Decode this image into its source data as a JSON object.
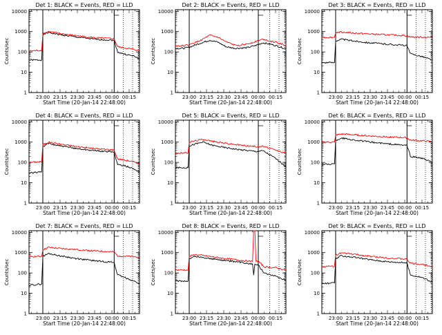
{
  "figure": {
    "background": "#ffffff",
    "series_colors": {
      "events": "#000000",
      "lld": "#ff0000"
    }
  },
  "chart_data": [
    {
      "type": "line",
      "title": "Det 1: BLACK = Events, RED = LLD",
      "xlabel": "Start Time (20-Jan-14 22:48:00)",
      "ylabel": "Counts/sec",
      "y_scale": "log",
      "ylim": [
        1,
        12000
      ],
      "xlim": [
        "22:48",
        "00:24"
      ],
      "x_tick_labels": [
        "23:00",
        "23:15",
        "23:30",
        "23:45",
        "00:00",
        "00:15"
      ],
      "y_tick_labels": [
        "1",
        "10",
        "100",
        "1000",
        "10000"
      ],
      "series": [
        {
          "name": "BLACK = Events",
          "color": "#000000",
          "x": [
            "22:48",
            "22:59",
            "23:00",
            "23:05",
            "23:15",
            "23:30",
            "23:45",
            "00:00",
            "00:02",
            "00:05",
            "00:10",
            "00:20",
            "00:24"
          ],
          "y": [
            40,
            40,
            700,
            900,
            700,
            530,
            420,
            380,
            360,
            100,
            80,
            60,
            45
          ]
        },
        {
          "name": "RED = LLD",
          "color": "#ff0000",
          "x": [
            "22:48",
            "22:59",
            "23:00",
            "23:05",
            "23:15",
            "23:30",
            "23:45",
            "00:00",
            "00:02",
            "00:05",
            "00:10",
            "00:20",
            "00:24"
          ],
          "y": [
            110,
            120,
            800,
            1000,
            800,
            620,
            500,
            450,
            430,
            180,
            160,
            130,
            110
          ]
        }
      ],
      "markers": [
        "23:00",
        "00:02"
      ],
      "dotted_lines": [
        "00:10",
        "00:18",
        "00:23"
      ]
    },
    {
      "type": "line",
      "title": "Det 2: BLACK = Events, RED = LLD",
      "xlabel": "Start Time (20-Jan-14 22:48:00)",
      "ylabel": "Counts/sec",
      "y_scale": "log",
      "ylim": [
        1,
        12000
      ],
      "xlim": [
        "22:48",
        "00:24"
      ],
      "x_tick_labels": [
        "23:00",
        "23:15",
        "23:30",
        "23:45",
        "00:00",
        "00:15"
      ],
      "y_tick_labels": [
        "1",
        "10",
        "100",
        "1000",
        "10000"
      ],
      "series": [
        {
          "name": "BLACK = Events",
          "color": "#000000",
          "x": [
            "22:48",
            "22:55",
            "23:00",
            "23:08",
            "23:18",
            "23:25",
            "23:32",
            "23:40",
            "23:50",
            "23:58",
            "00:04",
            "00:12",
            "00:20",
            "00:24"
          ],
          "y": [
            150,
            150,
            170,
            250,
            380,
            300,
            180,
            150,
            160,
            210,
            280,
            230,
            170,
            140
          ]
        },
        {
          "name": "RED = LLD",
          "color": "#ff0000",
          "x": [
            "22:48",
            "22:55",
            "23:00",
            "23:08",
            "23:18",
            "23:25",
            "23:32",
            "23:40",
            "23:50",
            "23:58",
            "00:04",
            "00:12",
            "00:20",
            "00:24"
          ],
          "y": [
            200,
            200,
            220,
            330,
            650,
            520,
            310,
            210,
            240,
            330,
            420,
            330,
            250,
            200
          ]
        }
      ],
      "markers": [
        "23:00",
        "00:00"
      ],
      "dotted_lines": [
        "00:10",
        "00:18",
        "00:23"
      ]
    },
    {
      "type": "line",
      "title": "Det 3: BLACK = Events, RED = LLD",
      "xlabel": "Start Time (20-Jan-14 22:48:00)",
      "ylabel": "Counts/sec",
      "y_scale": "log",
      "ylim": [
        1,
        12000
      ],
      "xlim": [
        "22:48",
        "00:24"
      ],
      "x_tick_labels": [
        "23:00",
        "23:15",
        "23:30",
        "23:45",
        "00:00",
        "00:15"
      ],
      "y_tick_labels": [
        "1",
        "10",
        "100",
        "1000",
        "10000"
      ],
      "series": [
        {
          "name": "BLACK = Events",
          "color": "#000000",
          "x": [
            "22:48",
            "22:59",
            "23:00",
            "23:05",
            "23:15",
            "23:30",
            "23:45",
            "00:00",
            "00:02",
            "00:05",
            "00:15",
            "00:24"
          ],
          "y": [
            30,
            30,
            350,
            420,
            350,
            280,
            240,
            210,
            200,
            80,
            60,
            40
          ]
        },
        {
          "name": "RED = LLD",
          "color": "#ff0000",
          "x": [
            "22:48",
            "22:59",
            "23:00",
            "23:05",
            "23:15",
            "23:30",
            "23:45",
            "00:00",
            "00:02",
            "00:05",
            "00:15",
            "00:24"
          ],
          "y": [
            520,
            520,
            900,
            950,
            850,
            760,
            690,
            640,
            620,
            540,
            530,
            520
          ]
        }
      ],
      "markers": [
        "23:00",
        "00:02"
      ],
      "dotted_lines": [
        "00:10",
        "00:18",
        "00:23"
      ]
    },
    {
      "type": "line",
      "title": "Det 4: BLACK = Events, RED = LLD",
      "xlabel": "Start Time (20-Jan-14 22:48:00)",
      "ylabel": "Counts/sec",
      "y_scale": "log",
      "ylim": [
        1,
        12000
      ],
      "xlim": [
        "22:48",
        "00:24"
      ],
      "x_tick_labels": [
        "23:00",
        "23:15",
        "23:30",
        "23:45",
        "00:00",
        "00:15"
      ],
      "y_tick_labels": [
        "1",
        "10",
        "100",
        "1000",
        "10000"
      ],
      "series": [
        {
          "name": "BLACK = Events",
          "color": "#000000",
          "x": [
            "22:48",
            "22:59",
            "23:00",
            "23:05",
            "23:15",
            "23:30",
            "23:45",
            "00:00",
            "00:02",
            "00:05",
            "00:15",
            "00:24"
          ],
          "y": [
            30,
            35,
            600,
            850,
            650,
            480,
            380,
            330,
            310,
            80,
            60,
            35
          ]
        },
        {
          "name": "RED = LLD",
          "color": "#ff0000",
          "x": [
            "22:48",
            "22:59",
            "23:00",
            "23:05",
            "23:15",
            "23:30",
            "23:45",
            "00:00",
            "00:02",
            "00:05",
            "00:15",
            "00:24"
          ],
          "y": [
            100,
            110,
            750,
            1000,
            800,
            600,
            480,
            420,
            400,
            150,
            120,
            90
          ]
        }
      ],
      "markers": [
        "23:00",
        "00:02"
      ],
      "dotted_lines": [
        "00:10",
        "00:18",
        "00:23"
      ]
    },
    {
      "type": "line",
      "title": "Det 5: BLACK = Events, RED = LLD",
      "xlabel": "Start Time (20-Jan-14 22:48:00)",
      "ylabel": "Counts/sec",
      "y_scale": "log",
      "ylim": [
        1,
        12000
      ],
      "xlim": [
        "22:48",
        "00:24"
      ],
      "x_tick_labels": [
        "23:00",
        "23:15",
        "23:30",
        "23:45",
        "00:00",
        "00:15"
      ],
      "y_tick_labels": [
        "1",
        "10",
        "100",
        "1000",
        "10000"
      ],
      "series": [
        {
          "name": "BLACK = Events",
          "color": "#000000",
          "x": [
            "22:48",
            "22:59",
            "23:00",
            "23:05",
            "23:12",
            "23:20",
            "23:30",
            "23:45",
            "23:58",
            "00:04",
            "00:15",
            "00:24"
          ],
          "y": [
            55,
            55,
            650,
            800,
            1000,
            700,
            550,
            420,
            350,
            380,
            160,
            60
          ]
        },
        {
          "name": "RED = LLD",
          "color": "#ff0000",
          "x": [
            "22:48",
            "22:59",
            "23:00",
            "23:05",
            "23:12",
            "23:20",
            "23:30",
            "23:45",
            "23:58",
            "00:04",
            "00:15",
            "00:24"
          ],
          "y": [
            280,
            300,
            1000,
            1150,
            1400,
            1100,
            900,
            700,
            600,
            620,
            400,
            280
          ]
        }
      ],
      "markers": [
        "23:00",
        "00:00"
      ],
      "dotted_lines": [
        "00:10",
        "00:18",
        "00:23"
      ]
    },
    {
      "type": "line",
      "title": "Det 6: BLACK = Events, RED = LLD",
      "xlabel": "Start Time (20-Jan-14 22:48:00)",
      "ylabel": "Counts/sec",
      "y_scale": "log",
      "ylim": [
        1,
        12000
      ],
      "xlim": [
        "22:48",
        "00:24"
      ],
      "x_tick_labels": [
        "23:00",
        "23:15",
        "23:30",
        "23:45",
        "00:00",
        "00:15"
      ],
      "y_tick_labels": [
        "1",
        "10",
        "100",
        "1000",
        "10000"
      ],
      "series": [
        {
          "name": "BLACK = Events",
          "color": "#000000",
          "x": [
            "22:48",
            "22:59",
            "23:00",
            "23:05",
            "23:15",
            "23:30",
            "23:45",
            "00:00",
            "00:02",
            "00:05",
            "00:15",
            "00:24"
          ],
          "y": [
            80,
            85,
            1200,
            1600,
            1300,
            1000,
            820,
            700,
            680,
            200,
            160,
            100
          ]
        },
        {
          "name": "RED = LLD",
          "color": "#ff0000",
          "x": [
            "22:48",
            "22:59",
            "23:00",
            "23:05",
            "23:15",
            "23:30",
            "23:45",
            "00:00",
            "00:02",
            "00:05",
            "00:15",
            "00:24"
          ],
          "y": [
            1000,
            1000,
            2200,
            2500,
            2300,
            2000,
            1800,
            1650,
            1600,
            1250,
            1150,
            1050
          ]
        }
      ],
      "markers": [
        "23:00",
        "00:02"
      ],
      "dotted_lines": [
        "00:10",
        "00:18",
        "00:23"
      ]
    },
    {
      "type": "line",
      "title": "Det 7: BLACK = Events, RED = LLD",
      "xlabel": "Start Time (20-Jan-14 22:48:00)",
      "ylabel": "Counts/sec",
      "y_scale": "log",
      "ylim": [
        1,
        12000
      ],
      "xlim": [
        "22:48",
        "00:24"
      ],
      "x_tick_labels": [
        "23:00",
        "23:15",
        "23:30",
        "23:45",
        "00:00",
        "00:15"
      ],
      "y_tick_labels": [
        "1",
        "10",
        "100",
        "1000",
        "10000"
      ],
      "series": [
        {
          "name": "BLACK = Events",
          "color": "#000000",
          "x": [
            "22:48",
            "22:59",
            "23:00",
            "23:05",
            "23:15",
            "23:30",
            "23:45",
            "00:00",
            "00:02",
            "00:05",
            "00:15",
            "00:24"
          ],
          "y": [
            25,
            28,
            650,
            900,
            700,
            500,
            400,
            340,
            320,
            80,
            50,
            30
          ]
        },
        {
          "name": "RED = LLD",
          "color": "#ff0000",
          "x": [
            "22:48",
            "22:59",
            "23:00",
            "23:05",
            "23:15",
            "23:30",
            "23:45",
            "00:00",
            "00:02",
            "00:05",
            "00:15",
            "00:24"
          ],
          "y": [
            650,
            650,
            1400,
            1800,
            1600,
            1400,
            1200,
            1100,
            1050,
            700,
            650,
            600
          ]
        }
      ],
      "markers": [
        "23:00",
        "00:02"
      ],
      "dotted_lines": [
        "00:10",
        "00:18",
        "00:23"
      ]
    },
    {
      "type": "line",
      "title": "Det 8: BLACK = Events, RED = LLD",
      "xlabel": "Start Time (20-Jan-14 22:48:00)",
      "ylabel": "Counts/sec",
      "y_scale": "log",
      "ylim": [
        1,
        12000
      ],
      "xlim": [
        "22:48",
        "00:24"
      ],
      "x_tick_labels": [
        "23:00",
        "23:15",
        "23:30",
        "23:45",
        "00:00",
        "00:15"
      ],
      "y_tick_labels": [
        "1",
        "10",
        "100",
        "1000",
        "10000"
      ],
      "series": [
        {
          "name": "BLACK = Events",
          "color": "#000000",
          "x": [
            "22:48",
            "22:59",
            "23:00",
            "23:05",
            "23:15",
            "23:30",
            "23:45",
            "23:55",
            "23:56",
            "23:57",
            "23:58",
            "00:00",
            "00:05",
            "00:15",
            "00:24"
          ],
          "y": [
            40,
            40,
            500,
            650,
            540,
            420,
            330,
            280,
            80,
            270,
            260,
            250,
            100,
            70,
            45
          ]
        },
        {
          "name": "RED = LLD",
          "color": "#ff0000",
          "x": [
            "22:48",
            "22:59",
            "23:00",
            "23:05",
            "23:15",
            "23:30",
            "23:45",
            "23:55",
            "23:56",
            "23:57",
            "23:58",
            "00:00",
            "00:05",
            "00:15",
            "00:24"
          ],
          "y": [
            140,
            140,
            650,
            800,
            680,
            520,
            420,
            360,
            12000,
            12000,
            400,
            380,
            200,
            180,
            140
          ]
        }
      ],
      "markers": [
        "23:00",
        "00:00"
      ],
      "dotted_lines": [
        "00:10",
        "00:18",
        "00:23"
      ]
    },
    {
      "type": "line",
      "title": "Det 9: BLACK = Events, RED = LLD",
      "xlabel": "Start Time (20-Jan-14 22:48:00)",
      "ylabel": "Counts/sec",
      "y_scale": "log",
      "ylim": [
        1,
        12000
      ],
      "xlim": [
        "22:48",
        "00:24"
      ],
      "x_tick_labels": [
        "23:00",
        "23:15",
        "23:30",
        "23:45",
        "00:00",
        "00:15"
      ],
      "y_tick_labels": [
        "1",
        "10",
        "100",
        "1000",
        "10000"
      ],
      "series": [
        {
          "name": "BLACK = Events",
          "color": "#000000",
          "x": [
            "22:48",
            "22:59",
            "23:00",
            "23:05",
            "23:15",
            "23:30",
            "23:45",
            "00:00",
            "00:02",
            "00:05",
            "00:15",
            "00:24"
          ],
          "y": [
            30,
            32,
            500,
            700,
            600,
            450,
            360,
            320,
            300,
            80,
            60,
            35
          ]
        },
        {
          "name": "RED = LLD",
          "color": "#ff0000",
          "x": [
            "22:48",
            "22:59",
            "23:00",
            "23:05",
            "23:15",
            "23:30",
            "23:45",
            "00:00",
            "00:02",
            "00:05",
            "00:15",
            "00:24"
          ],
          "y": [
            200,
            220,
            750,
            950,
            850,
            650,
            550,
            480,
            460,
            300,
            260,
            220
          ]
        }
      ],
      "markers": [
        "23:00",
        "00:02"
      ],
      "dotted_lines": [
        "00:10",
        "00:18",
        "00:23"
      ]
    }
  ]
}
